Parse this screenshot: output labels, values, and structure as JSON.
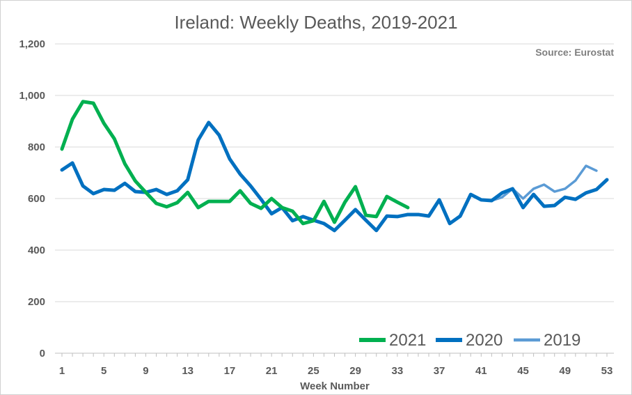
{
  "chart_data": {
    "type": "line",
    "title": "Ireland: Weekly Deaths, 2019-2021",
    "xlabel": "Week Number",
    "ylabel": "",
    "source": "Source: Eurostat",
    "xlim": [
      1,
      53
    ],
    "ylim": [
      0,
      1200
    ],
    "yticks": [
      0,
      200,
      400,
      600,
      800,
      1000,
      1200
    ],
    "ytick_labels": [
      "0",
      "200",
      "400",
      "600",
      "800",
      "1,000",
      "1,200"
    ],
    "xticks": [
      1,
      5,
      9,
      13,
      17,
      21,
      25,
      29,
      33,
      37,
      41,
      45,
      49,
      53
    ],
    "grid": true,
    "legend": "bottom-right",
    "series": [
      {
        "name": "2021",
        "color": "#00b050",
        "width": 5,
        "start_week": 1,
        "values": [
          792,
          908,
          976,
          970,
          892,
          832,
          735,
          668,
          624,
          581,
          568,
          584,
          624,
          565,
          589,
          589,
          589,
          630,
          581,
          562,
          600,
          565,
          551,
          503,
          514,
          589,
          508,
          586,
          646,
          535,
          530,
          608,
          586,
          565
        ]
      },
      {
        "name": "2020",
        "color": "#0070c0",
        "width": 5,
        "start_week": 1,
        "values": [
          711,
          738,
          649,
          619,
          635,
          632,
          659,
          627,
          624,
          635,
          616,
          630,
          673,
          827,
          895,
          846,
          754,
          695,
          649,
          597,
          541,
          565,
          514,
          530,
          516,
          503,
          476,
          516,
          557,
          516,
          476,
          532,
          530,
          538,
          538,
          532,
          595,
          503,
          532,
          616,
          595,
          592,
          622,
          638,
          565,
          616,
          570,
          573,
          605,
          597,
          622,
          635,
          673
        ]
      },
      {
        "name": "2019",
        "color": "#5b9bd5",
        "width": 3.5,
        "start_week": 41,
        "values": [
          595,
          592,
          605,
          638,
          600,
          638,
          654,
          627,
          638,
          670,
          727,
          708
        ]
      }
    ]
  }
}
